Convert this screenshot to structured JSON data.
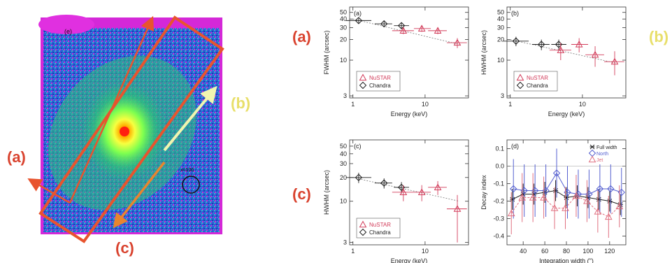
{
  "colors": {
    "label_a": "#d9432f",
    "label_b": "#e8df6a",
    "label_c": "#d9432f",
    "nustar": "#d23c5a",
    "chandra": "#222222",
    "box": "#e8542e",
    "arrow_b": "#f0f5b0",
    "arrow_c": "#e8852e",
    "north": "#5560d0",
    "jet": "#e07080",
    "full": "#222222"
  },
  "image_panel": {
    "panel_tag": "(e)",
    "region_tag": "x=100",
    "label_a": "(a)",
    "label_b": "(b)",
    "label_c": "(c)"
  },
  "side_labels": {
    "a": "(a)",
    "b": "(b)",
    "c": "(c)"
  },
  "chart_data": [
    {
      "type": "scatter",
      "panel_tag": "(a)",
      "ylabel": "FWHM (arcsec)",
      "xlabel": "Energy (keV)",
      "x_scale": "log",
      "y_scale": "log",
      "xlim": [
        0.9,
        40
      ],
      "ylim": [
        2.8,
        60
      ],
      "xticks": [
        1,
        10
      ],
      "yticks": [
        3,
        10,
        20,
        30,
        40,
        50
      ],
      "legend": [
        "NuSTAR",
        "Chandra"
      ],
      "legend_position": "bottom-left",
      "series": [
        {
          "name": "Chandra",
          "marker": "diamond",
          "x": [
            1.2,
            2.7,
            4.7
          ],
          "y": [
            38,
            34,
            32
          ],
          "xerr_lo": [
            0.4,
            0.7,
            1.0
          ],
          "xerr_hi": [
            0.6,
            0.8,
            1.3
          ],
          "yerr_lo": [
            3,
            3,
            3
          ],
          "yerr_hi": [
            3,
            3,
            3
          ]
        },
        {
          "name": "NuSTAR",
          "marker": "triangle",
          "x": [
            5,
            9,
            15,
            28
          ],
          "y": [
            27,
            29,
            27,
            18
          ],
          "xerr_lo": [
            1.5,
            2,
            4,
            8
          ],
          "xerr_hi": [
            2,
            3,
            5,
            10
          ],
          "yerr_lo": [
            3,
            3,
            3,
            3
          ],
          "yerr_hi": [
            3,
            3,
            3,
            3
          ]
        }
      ],
      "trend": {
        "x": [
          1,
          30
        ],
        "y": [
          40,
          17
        ]
      }
    },
    {
      "type": "scatter",
      "panel_tag": "(b)",
      "ylabel": "HWHM (arcsec)",
      "xlabel": "Energy (keV)",
      "x_scale": "log",
      "y_scale": "log",
      "xlim": [
        0.9,
        40
      ],
      "ylim": [
        2.8,
        60
      ],
      "xticks": [
        1,
        10
      ],
      "yticks": [
        3,
        10,
        20,
        30,
        40,
        50
      ],
      "legend": [
        "NuSTAR",
        "Chandra"
      ],
      "legend_position": "bottom-left",
      "series": [
        {
          "name": "Chandra",
          "marker": "diamond",
          "x": [
            1.2,
            2.7,
            4.7
          ],
          "y": [
            19,
            17,
            17
          ],
          "xerr_lo": [
            0.4,
            0.7,
            1.0
          ],
          "xerr_hi": [
            0.6,
            0.8,
            1.3
          ],
          "yerr_lo": [
            3,
            3,
            3
          ],
          "yerr_hi": [
            3,
            3,
            3
          ]
        },
        {
          "name": "NuSTAR",
          "marker": "triangle",
          "x": [
            5,
            9,
            15,
            28
          ],
          "y": [
            14,
            17,
            12,
            9.5
          ],
          "xerr_lo": [
            1.5,
            2,
            4,
            8
          ],
          "xerr_hi": [
            2,
            3,
            5,
            10
          ],
          "yerr_lo": [
            4,
            4,
            4,
            3.5
          ],
          "yerr_hi": [
            4,
            4,
            4,
            4
          ]
        }
      ],
      "trend": {
        "x": [
          1,
          30
        ],
        "y": [
          20,
          9
        ]
      }
    },
    {
      "type": "scatter",
      "panel_tag": "(c)",
      "ylabel": "HWHM (arcsec)",
      "xlabel": "Energy (keV)",
      "x_scale": "log",
      "y_scale": "log",
      "xlim": [
        0.9,
        40
      ],
      "ylim": [
        2.8,
        60
      ],
      "xticks": [
        1,
        10
      ],
      "yticks": [
        3,
        10,
        20,
        30,
        40,
        50
      ],
      "legend": [
        "NuSTAR",
        "Chandra"
      ],
      "legend_position": "bottom-left",
      "series": [
        {
          "name": "Chandra",
          "marker": "diamond",
          "x": [
            1.2,
            2.7,
            4.7
          ],
          "y": [
            20,
            17,
            15
          ],
          "xerr_lo": [
            0.4,
            0.7,
            1.0
          ],
          "xerr_hi": [
            0.6,
            0.8,
            1.3
          ],
          "yerr_lo": [
            3,
            2.5,
            2.5
          ],
          "yerr_hi": [
            3,
            2.5,
            2.5
          ]
        },
        {
          "name": "NuSTAR",
          "marker": "triangle",
          "x": [
            5,
            9,
            15,
            28
          ],
          "y": [
            13,
            13,
            15,
            8
          ],
          "xerr_lo": [
            1.5,
            2,
            4,
            8
          ],
          "xerr_hi": [
            2,
            3,
            5,
            10
          ],
          "yerr_lo": [
            3,
            3,
            3,
            5
          ],
          "yerr_hi": [
            3,
            3,
            3,
            4
          ]
        }
      ],
      "trend": {
        "x": [
          1,
          30
        ],
        "y": [
          20,
          10
        ]
      }
    },
    {
      "type": "line",
      "panel_tag": "(d)",
      "ylabel": "Decay index",
      "xlabel": "Integration width (\")",
      "x_scale": "linear",
      "y_scale": "linear",
      "xlim": [
        25,
        135
      ],
      "ylim": [
        -0.45,
        0.15
      ],
      "xticks": [
        40,
        60,
        80,
        100,
        120
      ],
      "yticks": [
        0.1,
        0.0,
        -0.1,
        -0.2,
        -0.3,
        -0.4
      ],
      "legend": [
        "Full width",
        "North",
        "Jet"
      ],
      "legend_position": "top-right",
      "x": [
        30,
        40,
        50,
        60,
        70,
        80,
        90,
        100,
        110,
        120,
        130
      ],
      "series": [
        {
          "name": "Full width",
          "marker": "asterisk",
          "y": [
            -0.19,
            -0.16,
            -0.16,
            -0.15,
            -0.14,
            -0.18,
            -0.17,
            -0.18,
            -0.19,
            -0.2,
            -0.22
          ],
          "err": [
            0.06,
            0.06,
            0.06,
            0.06,
            0.06,
            0.06,
            0.06,
            0.06,
            0.06,
            0.06,
            0.06
          ]
        },
        {
          "name": "North",
          "marker": "diamond",
          "y": [
            -0.13,
            -0.14,
            -0.14,
            -0.14,
            -0.04,
            -0.15,
            -0.16,
            -0.16,
            -0.13,
            -0.13,
            -0.15
          ],
          "err": [
            0.17,
            0.15,
            0.15,
            0.15,
            0.14,
            0.15,
            0.14,
            0.14,
            0.14,
            0.14,
            0.14
          ]
        },
        {
          "name": "Jet",
          "marker": "triangle",
          "y": [
            -0.27,
            -0.18,
            -0.18,
            -0.18,
            -0.24,
            -0.24,
            -0.17,
            -0.2,
            -0.26,
            -0.29,
            -0.23
          ],
          "err": [
            0.12,
            0.14,
            0.14,
            0.12,
            0.12,
            0.12,
            0.12,
            0.12,
            0.12,
            0.12,
            0.12
          ]
        }
      ]
    }
  ]
}
